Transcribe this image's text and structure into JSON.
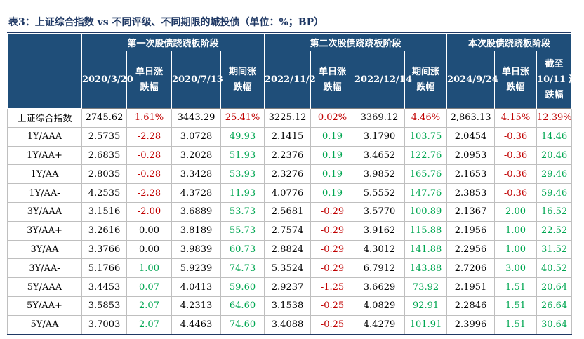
{
  "title": "表3：上证综合指数 vs 不同评级、不同期限的城投债（单位：%；BP）",
  "groups": [
    "第一次股债跷跷板阶段",
    "第二次股债跷跷板阶段",
    "本次股债跷跷板阶段"
  ],
  "columns": [
    [
      "2020/3/20"
    ],
    [
      "单日涨",
      "跌幅"
    ],
    [
      "2020/7/13"
    ],
    [
      "期间涨",
      "跌幅"
    ],
    [
      "2022/11/2"
    ],
    [
      "单日涨",
      "跌幅"
    ],
    [
      "2022/12/14"
    ],
    [
      "期间涨",
      "跌幅"
    ],
    [
      "2024/9/24"
    ],
    [
      "单日涨",
      "跌幅"
    ],
    [
      "截至",
      "10/11 涨",
      "跌幅"
    ]
  ],
  "rows": [
    {
      "label": "上证综合指数",
      "cells": [
        "2745.62",
        "1.61%",
        "3443.29",
        "25.41%",
        "3225.12",
        "0.02%",
        "3369.12",
        "4.46%",
        "2,863.13",
        "4.15%",
        "12.39%"
      ]
    },
    {
      "label": "1Y/AAA",
      "cells": [
        "2.5735",
        "-2.28",
        "3.0728",
        "49.93",
        "2.1415",
        "0.19",
        "3.1790",
        "103.75",
        "2.0454",
        "-0.36",
        "14.46"
      ]
    },
    {
      "label": "1Y/AA+",
      "cells": [
        "2.6835",
        "-0.28",
        "3.2028",
        "51.93",
        "2.2376",
        "0.19",
        "3.4652",
        "122.76",
        "2.0953",
        "-0.36",
        "20.46"
      ]
    },
    {
      "label": "1Y/AA",
      "cells": [
        "2.8035",
        "-0.28",
        "3.3428",
        "53.93",
        "2.3276",
        "0.19",
        "3.9852",
        "165.76",
        "2.1653",
        "-0.36",
        "29.46"
      ]
    },
    {
      "label": "1Y/AA-",
      "cells": [
        "4.2535",
        "-2.28",
        "4.3728",
        "11.93",
        "4.0776",
        "0.19",
        "5.5552",
        "147.76",
        "2.3853",
        "-0.36",
        "59.46"
      ]
    },
    {
      "label": "3Y/AAA",
      "cells": [
        "3.1516",
        "-2.00",
        "3.6889",
        "53.73",
        "2.5681",
        "-0.29",
        "3.5770",
        "100.89",
        "2.1367",
        "2.00",
        "16.52"
      ]
    },
    {
      "label": "3Y/AA+",
      "cells": [
        "3.2616",
        "0.00",
        "3.8189",
        "55.73",
        "2.7574",
        "-0.29",
        "3.9162",
        "115.88",
        "2.1956",
        "1.00",
        "22.52"
      ]
    },
    {
      "label": "3Y/AA",
      "cells": [
        "3.3766",
        "0.00",
        "3.9839",
        "60.73",
        "2.8824",
        "-0.29",
        "4.3012",
        "141.88",
        "2.2956",
        "1.00",
        "31.52"
      ]
    },
    {
      "label": "3Y/AA-",
      "cells": [
        "5.1766",
        "1.00",
        "5.9239",
        "74.73",
        "5.3524",
        "-0.29",
        "6.7912",
        "143.88",
        "2.7206",
        "3.00",
        "40.52"
      ]
    },
    {
      "label": "5Y/AAA",
      "cells": [
        "3.4453",
        "0.07",
        "4.0413",
        "59.60",
        "2.9237",
        "-1.25",
        "3.6629",
        "73.92",
        "2.1951",
        "1.51",
        "20.64"
      ]
    },
    {
      "label": "5Y/AA+",
      "cells": [
        "3.5853",
        "2.07",
        "4.2313",
        "64.60",
        "3.1538",
        "-0.25",
        "4.0829",
        "92.91",
        "2.2846",
        "1.51",
        "26.64"
      ]
    },
    {
      "label": "5Y/AA",
      "cells": [
        "3.7003",
        "2.07",
        "4.4463",
        "74.60",
        "3.4088",
        "-0.25",
        "4.4279",
        "101.91",
        "2.3996",
        "1.51",
        "30.64"
      ]
    }
  ],
  "colors": {
    "header_bg": "#1f4e79",
    "title_color": "#1f3864",
    "positive": "#00a651",
    "negative": "#c00000"
  }
}
